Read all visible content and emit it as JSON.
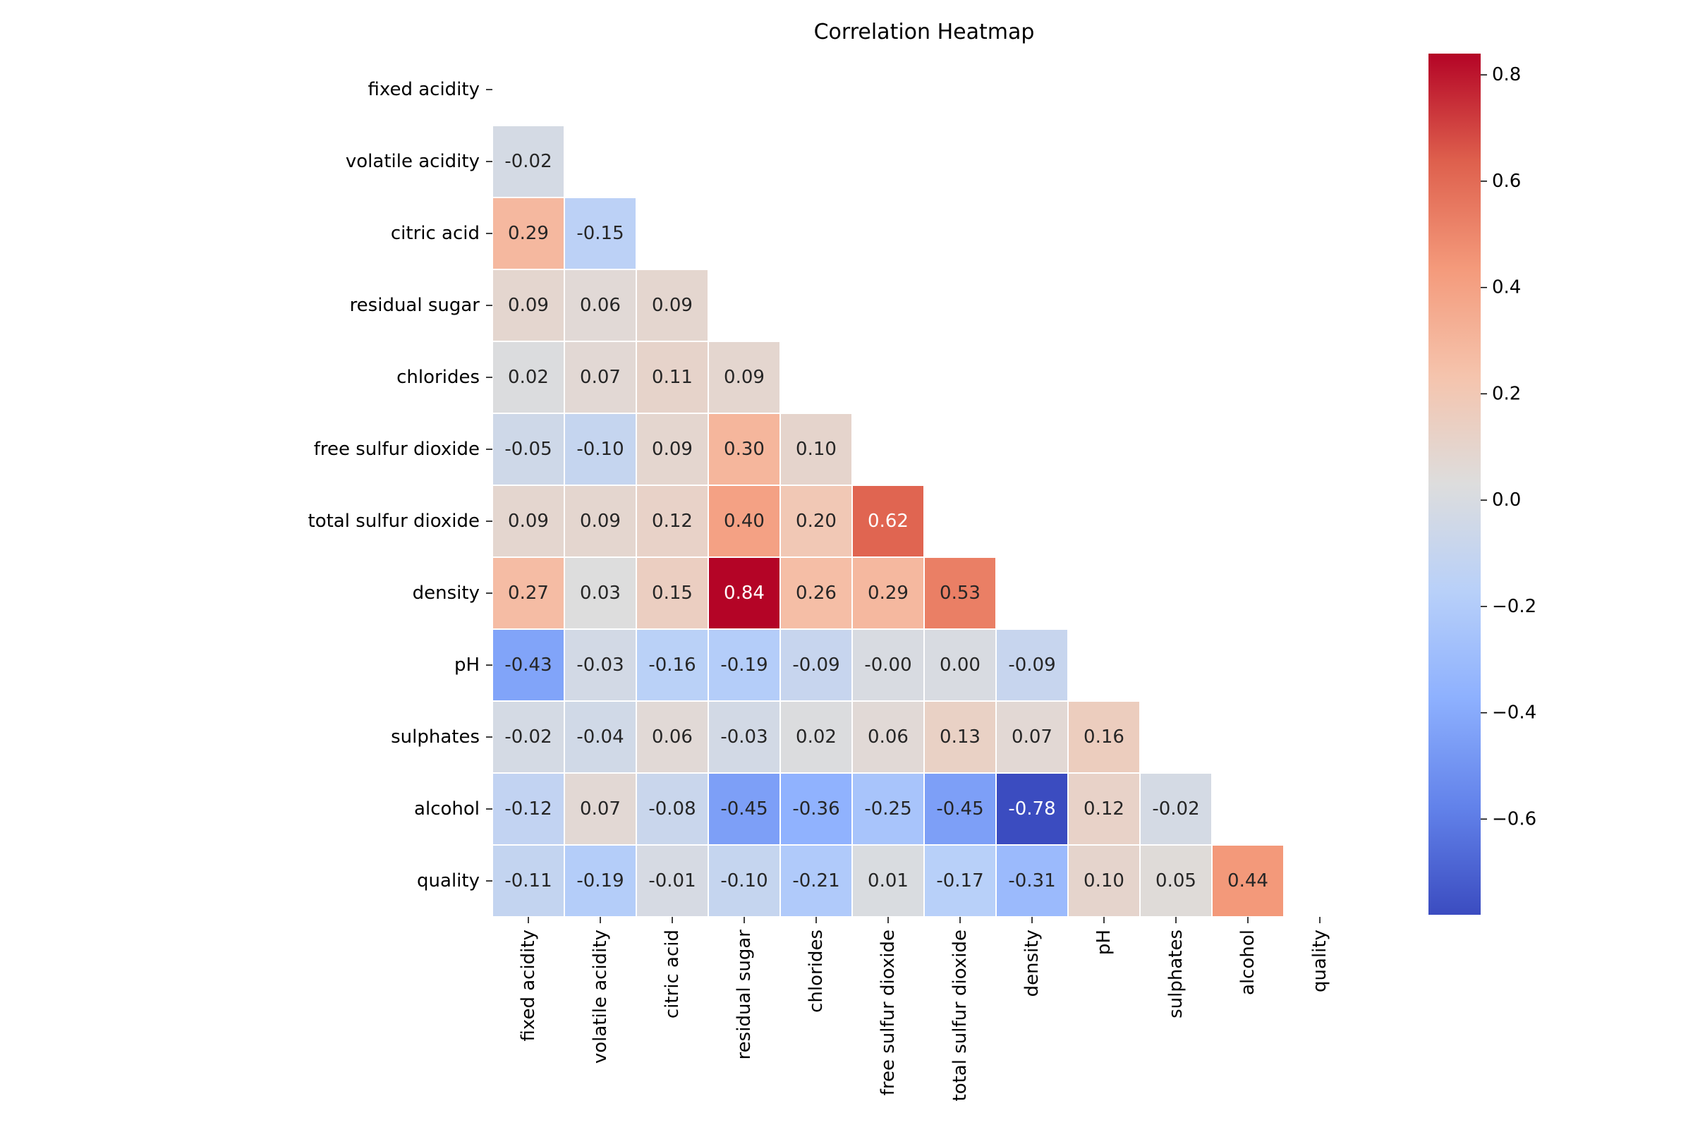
{
  "chart_data": {
    "type": "heatmap",
    "title": "Correlation Heatmap",
    "xlabel": "",
    "ylabel": "",
    "row_labels": [
      "fixed acidity",
      "volatile acidity",
      "citric acid",
      "residual sugar",
      "chlorides",
      "free sulfur dioxide",
      "total sulfur dioxide",
      "density",
      "pH",
      "sulphates",
      "alcohol",
      "quality"
    ],
    "col_labels": [
      "fixed acidity",
      "volatile acidity",
      "citric acid",
      "residual sugar",
      "chlorides",
      "free sulfur dioxide",
      "total sulfur dioxide",
      "density",
      "pH",
      "sulphates",
      "alcohol",
      "quality"
    ],
    "values": [
      [],
      [
        -0.02
      ],
      [
        0.29,
        -0.15
      ],
      [
        0.09,
        0.06,
        0.09
      ],
      [
        0.02,
        0.07,
        0.11,
        0.09
      ],
      [
        -0.05,
        -0.1,
        0.09,
        0.3,
        0.1
      ],
      [
        0.09,
        0.09,
        0.12,
        0.4,
        0.2,
        0.62
      ],
      [
        0.27,
        0.03,
        0.15,
        0.84,
        0.26,
        0.29,
        0.53
      ],
      [
        -0.43,
        -0.03,
        -0.16,
        -0.19,
        -0.09,
        -0.0,
        0.0,
        -0.09
      ],
      [
        -0.02,
        -0.04,
        0.06,
        -0.03,
        0.02,
        0.06,
        0.13,
        0.07,
        0.16
      ],
      [
        -0.12,
        0.07,
        -0.08,
        -0.45,
        -0.36,
        -0.25,
        -0.45,
        -0.78,
        0.12,
        -0.02
      ],
      [
        -0.11,
        -0.19,
        -0.01,
        -0.1,
        -0.21,
        0.01,
        -0.17,
        -0.31,
        0.1,
        0.05,
        0.44
      ]
    ],
    "mask": "upper triangle including diagonal",
    "colormap": "coolwarm",
    "colorbar": {
      "vmin": -0.78,
      "vmax": 0.84,
      "ticks": [
        0.8,
        0.6,
        0.4,
        0.2,
        0.0,
        -0.2,
        -0.4,
        -0.6
      ],
      "tick_labels": [
        "0.8",
        "0.6",
        "0.4",
        "0.2",
        "0.0",
        "−0.2",
        "−0.4",
        "−0.6"
      ]
    },
    "grid": false,
    "legend": "colorbar-right"
  }
}
